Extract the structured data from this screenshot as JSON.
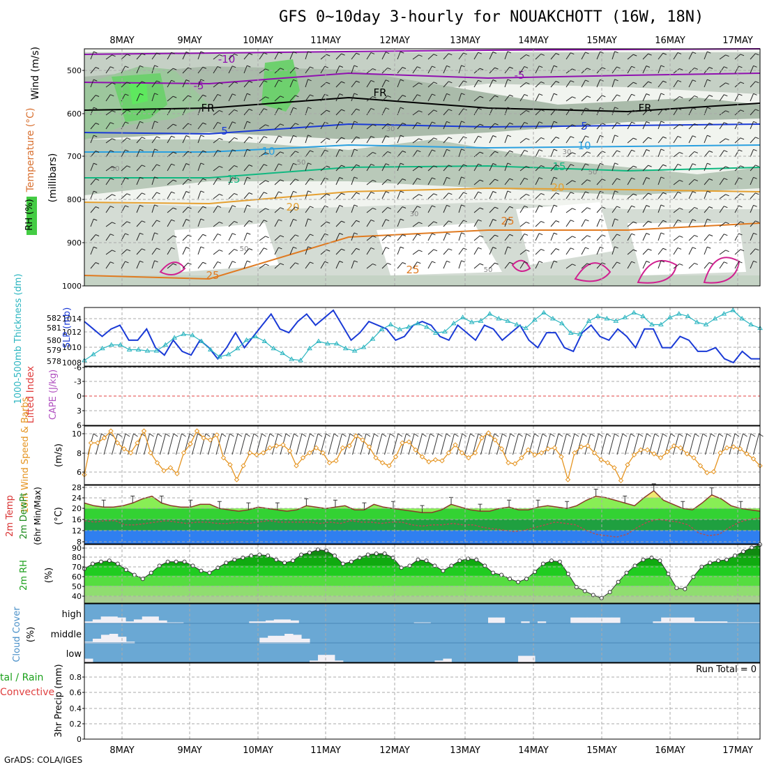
{
  "title": "GFS 0~10day 3-hourly for NOUAKCHOTT (16W, 18N)",
  "footer": "GrADS: COLA/IGES",
  "dates": [
    "8MAY",
    "9MAY",
    "10MAY",
    "11MAY",
    "12MAY",
    "13MAY",
    "14MAY",
    "15MAY",
    "16MAY",
    "17MAY"
  ],
  "run_total": "Run Total = 0",
  "colors": {
    "slp": "#1a3ad6",
    "thick": "#2bb5c0",
    "wind": "#e59420",
    "rh_fill": "#22cc22",
    "cloud": "#6aa8d4",
    "tmax": "#f0e870",
    "blue_band": "#2f7ff0"
  },
  "panels": {
    "upper": {
      "axis_label_wind": "Wind (m/s)",
      "axis_label_temp": "Temperature (°C)",
      "axis_label_rh": "RH (%)",
      "axis_label_p": "(millibars)",
      "y_ticks": [
        "500",
        "600",
        "700",
        "800",
        "900",
        "1000"
      ],
      "contour_labels": [
        "-10",
        "-5",
        "-5",
        "FR",
        "FR",
        "FR",
        "5",
        "5",
        "10",
        "10",
        "15",
        "15",
        "20",
        "20",
        "25",
        "25",
        "25",
        "50",
        "50",
        "30",
        "30",
        "30",
        "50",
        "50",
        "50"
      ]
    },
    "pressure": {
      "label_thick": "1000-500mb Thickness (dm)",
      "label_slp": "SLP (mb)",
      "left_ticks": [
        "582",
        "581",
        "580",
        "579",
        "578"
      ],
      "right_ticks": [
        "1014",
        "1012",
        "1010",
        "1008"
      ]
    },
    "stability": {
      "label_li": "Lifted Index",
      "label_cape": "CAPE (J/kg)",
      "ticks": [
        "-6",
        "-3",
        "0",
        "3",
        "6"
      ]
    },
    "wind10m": {
      "label": "10m Wind Speed & Barbs",
      "unit": "(m/s)",
      "ticks": [
        "10",
        "8",
        "6"
      ]
    },
    "temp": {
      "label1": "2m Temp",
      "label2": "2m DewPt",
      "label3": "(6hr Min/Max)",
      "unit": "(°C)",
      "ticks": [
        "28",
        "24",
        "20",
        "16",
        "12",
        "8"
      ]
    },
    "rh": {
      "label": "2m RH",
      "unit": "(%)",
      "ticks": [
        "90",
        "80",
        "70",
        "60",
        "50",
        "40"
      ]
    },
    "cloud": {
      "label": "Cloud Cover",
      "unit": "(%)",
      "levels": [
        "high",
        "middle",
        "low"
      ]
    },
    "precip": {
      "label_total": "tal / Rain",
      "label_conv": "Convective",
      "label_y": "3hr Precip (mm)",
      "ticks": [
        "0.8",
        "0.6",
        "0.4",
        "0.2",
        "0"
      ]
    }
  },
  "chart_data": [
    {
      "type": "line",
      "title": "",
      "series": [
        {
          "name": "SLP (mb)",
          "values": [
            1013.5,
            1012.5,
            1011.5,
            1012.5,
            1013,
            1011,
            1011,
            1012.5,
            1010,
            1009,
            1011,
            1009.5,
            1009,
            1011,
            1010,
            1008.5,
            1010,
            1012,
            1010,
            1011.5,
            1013,
            1014.5,
            1012.5,
            1012,
            1013.5,
            1014.5,
            1013,
            1014,
            1015,
            1013,
            1011,
            1012,
            1013.5,
            1013,
            1012.5,
            1011,
            1011.5,
            1013,
            1013.5,
            1013,
            1011.5,
            1011,
            1013,
            1012,
            1011,
            1013,
            1012.5,
            1011,
            1012,
            1013,
            1011,
            1010,
            1012,
            1012,
            1010,
            1009.5,
            1012,
            1013,
            1011.5,
            1011,
            1012.5,
            1011.5,
            1010,
            1012.5,
            1012.5,
            1010,
            1010,
            1011.5,
            1011,
            1009.5,
            1009.5,
            1010,
            1008.5,
            1008,
            1009.5,
            1008.5,
            1008.5
          ]
        },
        {
          "name": "1000-500mb Thickness (dm)",
          "values": [
            578.3,
            578.8,
            579.3,
            579.6,
            579.6,
            579.2,
            579.2,
            579.1,
            579.1,
            579.6,
            580.2,
            580.5,
            580.4,
            579.9,
            579.2,
            578.6,
            578.8,
            579.3,
            580,
            580.3,
            579.9,
            579.3,
            578.9,
            578.4,
            578.3,
            579.3,
            579.9,
            579.7,
            579.7,
            579.3,
            579.1,
            579.4,
            580.1,
            580.9,
            581.3,
            580.9,
            581.1,
            581.4,
            581.1,
            580.6,
            580.7,
            581.4,
            581.9,
            581.5,
            581.6,
            582.2,
            581.8,
            581.6,
            581.3,
            581,
            581.7,
            582.3,
            581.8,
            581.4,
            580.6,
            580.5,
            581.6,
            582,
            581.8,
            581.6,
            581.9,
            582.3,
            582,
            581.3,
            581.3,
            581.9,
            582.2,
            582,
            581.5,
            581.3,
            581.8,
            582.2,
            582.5,
            581.8,
            581.3,
            581
          ]
        }
      ],
      "xlabel": "",
      "ylabel": "SLP (mb)",
      "ylim": [
        1007,
        1016
      ]
    },
    {
      "type": "line",
      "title": "",
      "series": [
        {
          "name": "10m Wind Speed",
          "values": [
            5.8,
            9,
            9,
            9.5,
            10.2,
            9,
            8.4,
            8,
            9,
            10.2,
            8,
            7,
            6.2,
            6.5,
            5.9,
            8,
            8.9,
            10.2,
            9.5,
            9.3,
            9.8,
            7.5,
            6.8,
            5.3,
            6.7,
            8,
            7.8,
            8,
            8.5,
            8.7,
            8.8,
            8.2,
            6.7,
            7.5,
            8,
            8.5,
            8,
            7,
            7.2,
            8.5,
            8.7,
            9.7,
            9.3,
            8.6,
            7.5,
            7,
            6.7,
            7.6,
            9,
            9.1,
            8.3,
            7.6,
            7.1,
            7.3,
            7.2,
            8,
            8.8,
            8,
            7.5,
            8,
            9.5,
            10,
            9.3,
            8.4,
            7,
            6.9,
            7.5,
            8.3,
            7.8,
            8,
            8.4,
            8.5,
            7.6,
            5.3,
            8,
            8.6,
            8.7,
            8,
            7.3,
            7,
            6.5,
            5.2,
            6.8,
            7.8,
            8.3,
            8.3,
            7.9,
            7.5,
            8.1,
            8.7,
            8.5,
            7.9,
            7.5,
            6.7,
            6,
            6.1,
            8,
            8.5,
            8.6,
            8.4,
            7.9,
            7.4,
            6.7
          ]
        }
      ],
      "xlabel": "",
      "ylabel": "(m/s)",
      "ylim": [
        5,
        11
      ]
    },
    {
      "type": "line",
      "title": "",
      "series": [
        {
          "name": "2m Temp",
          "values": [
            22,
            21,
            20.5,
            20.5,
            21,
            22,
            23.5,
            24.5,
            22,
            21,
            20.5,
            20.5,
            21.5,
            21.5,
            20,
            19.5,
            19,
            19.5,
            20.5,
            20,
            19.5,
            19,
            19.5,
            21,
            20.5,
            20,
            20.5,
            21,
            19.5,
            19.5,
            21.5,
            20.5,
            20,
            19.5,
            19,
            18.5,
            18.5,
            19.5,
            21.5,
            20.5,
            19.5,
            19,
            19,
            20,
            20.5,
            19.5,
            19.5,
            20.5,
            21,
            20.5,
            20,
            21,
            23,
            24.5,
            24,
            23,
            22,
            21,
            24,
            26.5,
            23,
            21.5,
            20,
            19.5,
            22,
            25,
            23.5,
            21,
            20,
            19.5,
            19
          ]
        },
        {
          "name": "2m DewPt",
          "values": [
            15.5,
            15,
            15.5,
            15.5,
            14,
            14,
            14.5,
            15,
            15.5,
            15,
            14.5,
            15,
            15,
            14.5,
            14.5,
            15,
            14.5,
            15,
            15.5,
            15,
            15,
            15,
            15,
            14.5,
            15,
            14.5,
            15.5,
            15,
            15,
            14.5,
            15,
            15,
            14,
            13.5,
            14,
            14,
            14.5,
            14,
            14,
            13,
            12.5,
            12,
            11.5,
            12,
            13,
            14,
            15,
            14.5,
            14,
            12,
            10.5,
            10,
            9.5,
            10.5,
            13,
            15,
            16,
            15.5,
            15,
            14,
            11,
            10,
            10.5,
            13,
            15,
            16,
            16.5
          ]
        }
      ],
      "xlabel": "",
      "ylabel": "(°C)",
      "ylim": [
        8,
        28
      ]
    },
    {
      "type": "area",
      "title": "",
      "series": [
        {
          "name": "2m RH",
          "values": [
            67,
            72,
            74,
            75,
            72,
            66,
            61,
            57,
            63,
            70,
            74,
            74,
            74,
            70,
            65,
            63,
            68,
            73,
            76,
            78,
            80,
            81,
            80,
            76,
            73,
            75,
            81,
            83,
            86,
            85,
            80,
            72,
            74,
            78,
            81,
            82,
            82,
            78,
            68,
            70,
            76,
            75,
            70,
            65,
            70,
            75,
            77,
            76,
            70,
            63,
            61,
            57,
            54,
            57,
            64,
            72,
            75,
            74,
            62,
            49,
            45,
            41,
            38,
            44,
            54,
            63,
            70,
            76,
            78,
            75,
            62,
            48,
            47,
            59,
            69,
            73,
            75,
            76,
            80,
            84,
            88,
            91
          ]
        }
      ],
      "xlabel": "",
      "ylabel": "(%)",
      "ylim": [
        35,
        90
      ]
    },
    {
      "type": "bar",
      "title": "",
      "series": [
        {
          "name": "high",
          "values": [
            10,
            20,
            35,
            35,
            30,
            10,
            20,
            35,
            35,
            15,
            5,
            5,
            0,
            0,
            0,
            0,
            0,
            0,
            0,
            0,
            10,
            10,
            15,
            20,
            20,
            15,
            0,
            0,
            0,
            0,
            0,
            0,
            0,
            0,
            0,
            0,
            0,
            0,
            0,
            0,
            5,
            5,
            0,
            0,
            0,
            0,
            0,
            0,
            0,
            30,
            30,
            0,
            0,
            10,
            0,
            10,
            0,
            0,
            0,
            30,
            30,
            30,
            30,
            30,
            30,
            0,
            0,
            0,
            0,
            10,
            30,
            30,
            30,
            30,
            10,
            10,
            10,
            10,
            5,
            5,
            5,
            5
          ]
        },
        {
          "name": "middle",
          "values": [
            10,
            25,
            45,
            50,
            35,
            10,
            0,
            0,
            0,
            0,
            0,
            0,
            0,
            0,
            0,
            0,
            0,
            0,
            0,
            0,
            0,
            30,
            40,
            40,
            50,
            45,
            25,
            0,
            0,
            0,
            0,
            0,
            0,
            0,
            0,
            0,
            0,
            0,
            0,
            0,
            0,
            0,
            0,
            0,
            0,
            0,
            0,
            0,
            0,
            0,
            0,
            0,
            0,
            0,
            0,
            0,
            0,
            0,
            0,
            0,
            0,
            0,
            0,
            0,
            0,
            0,
            0,
            0,
            0,
            0,
            0,
            0,
            0,
            0,
            0,
            0,
            0,
            0,
            0,
            0,
            0
          ]
        },
        {
          "name": "low",
          "values": [
            20,
            0,
            0,
            0,
            0,
            0,
            0,
            0,
            0,
            0,
            0,
            0,
            0,
            0,
            0,
            0,
            0,
            0,
            0,
            0,
            0,
            0,
            0,
            0,
            0,
            0,
            0,
            10,
            40,
            40,
            10,
            0,
            0,
            0,
            0,
            0,
            0,
            0,
            0,
            0,
            0,
            0,
            10,
            20,
            0,
            0,
            0,
            0,
            0,
            0,
            0,
            0,
            35,
            35,
            0,
            0,
            0,
            0,
            0,
            0,
            0,
            0,
            0,
            0,
            0,
            0,
            0,
            0,
            0,
            0,
            0,
            0,
            0,
            0,
            0,
            0,
            0,
            0,
            0,
            0,
            0
          ]
        }
      ],
      "xlabel": "",
      "ylabel": "(%)",
      "ylim": [
        0,
        100
      ]
    },
    {
      "type": "bar",
      "title": "",
      "series": [
        {
          "name": "3hr Precip",
          "values": []
        }
      ],
      "xlabel": "",
      "ylabel": "3hr Precip (mm)",
      "ylim": [
        0,
        1
      ]
    }
  ]
}
